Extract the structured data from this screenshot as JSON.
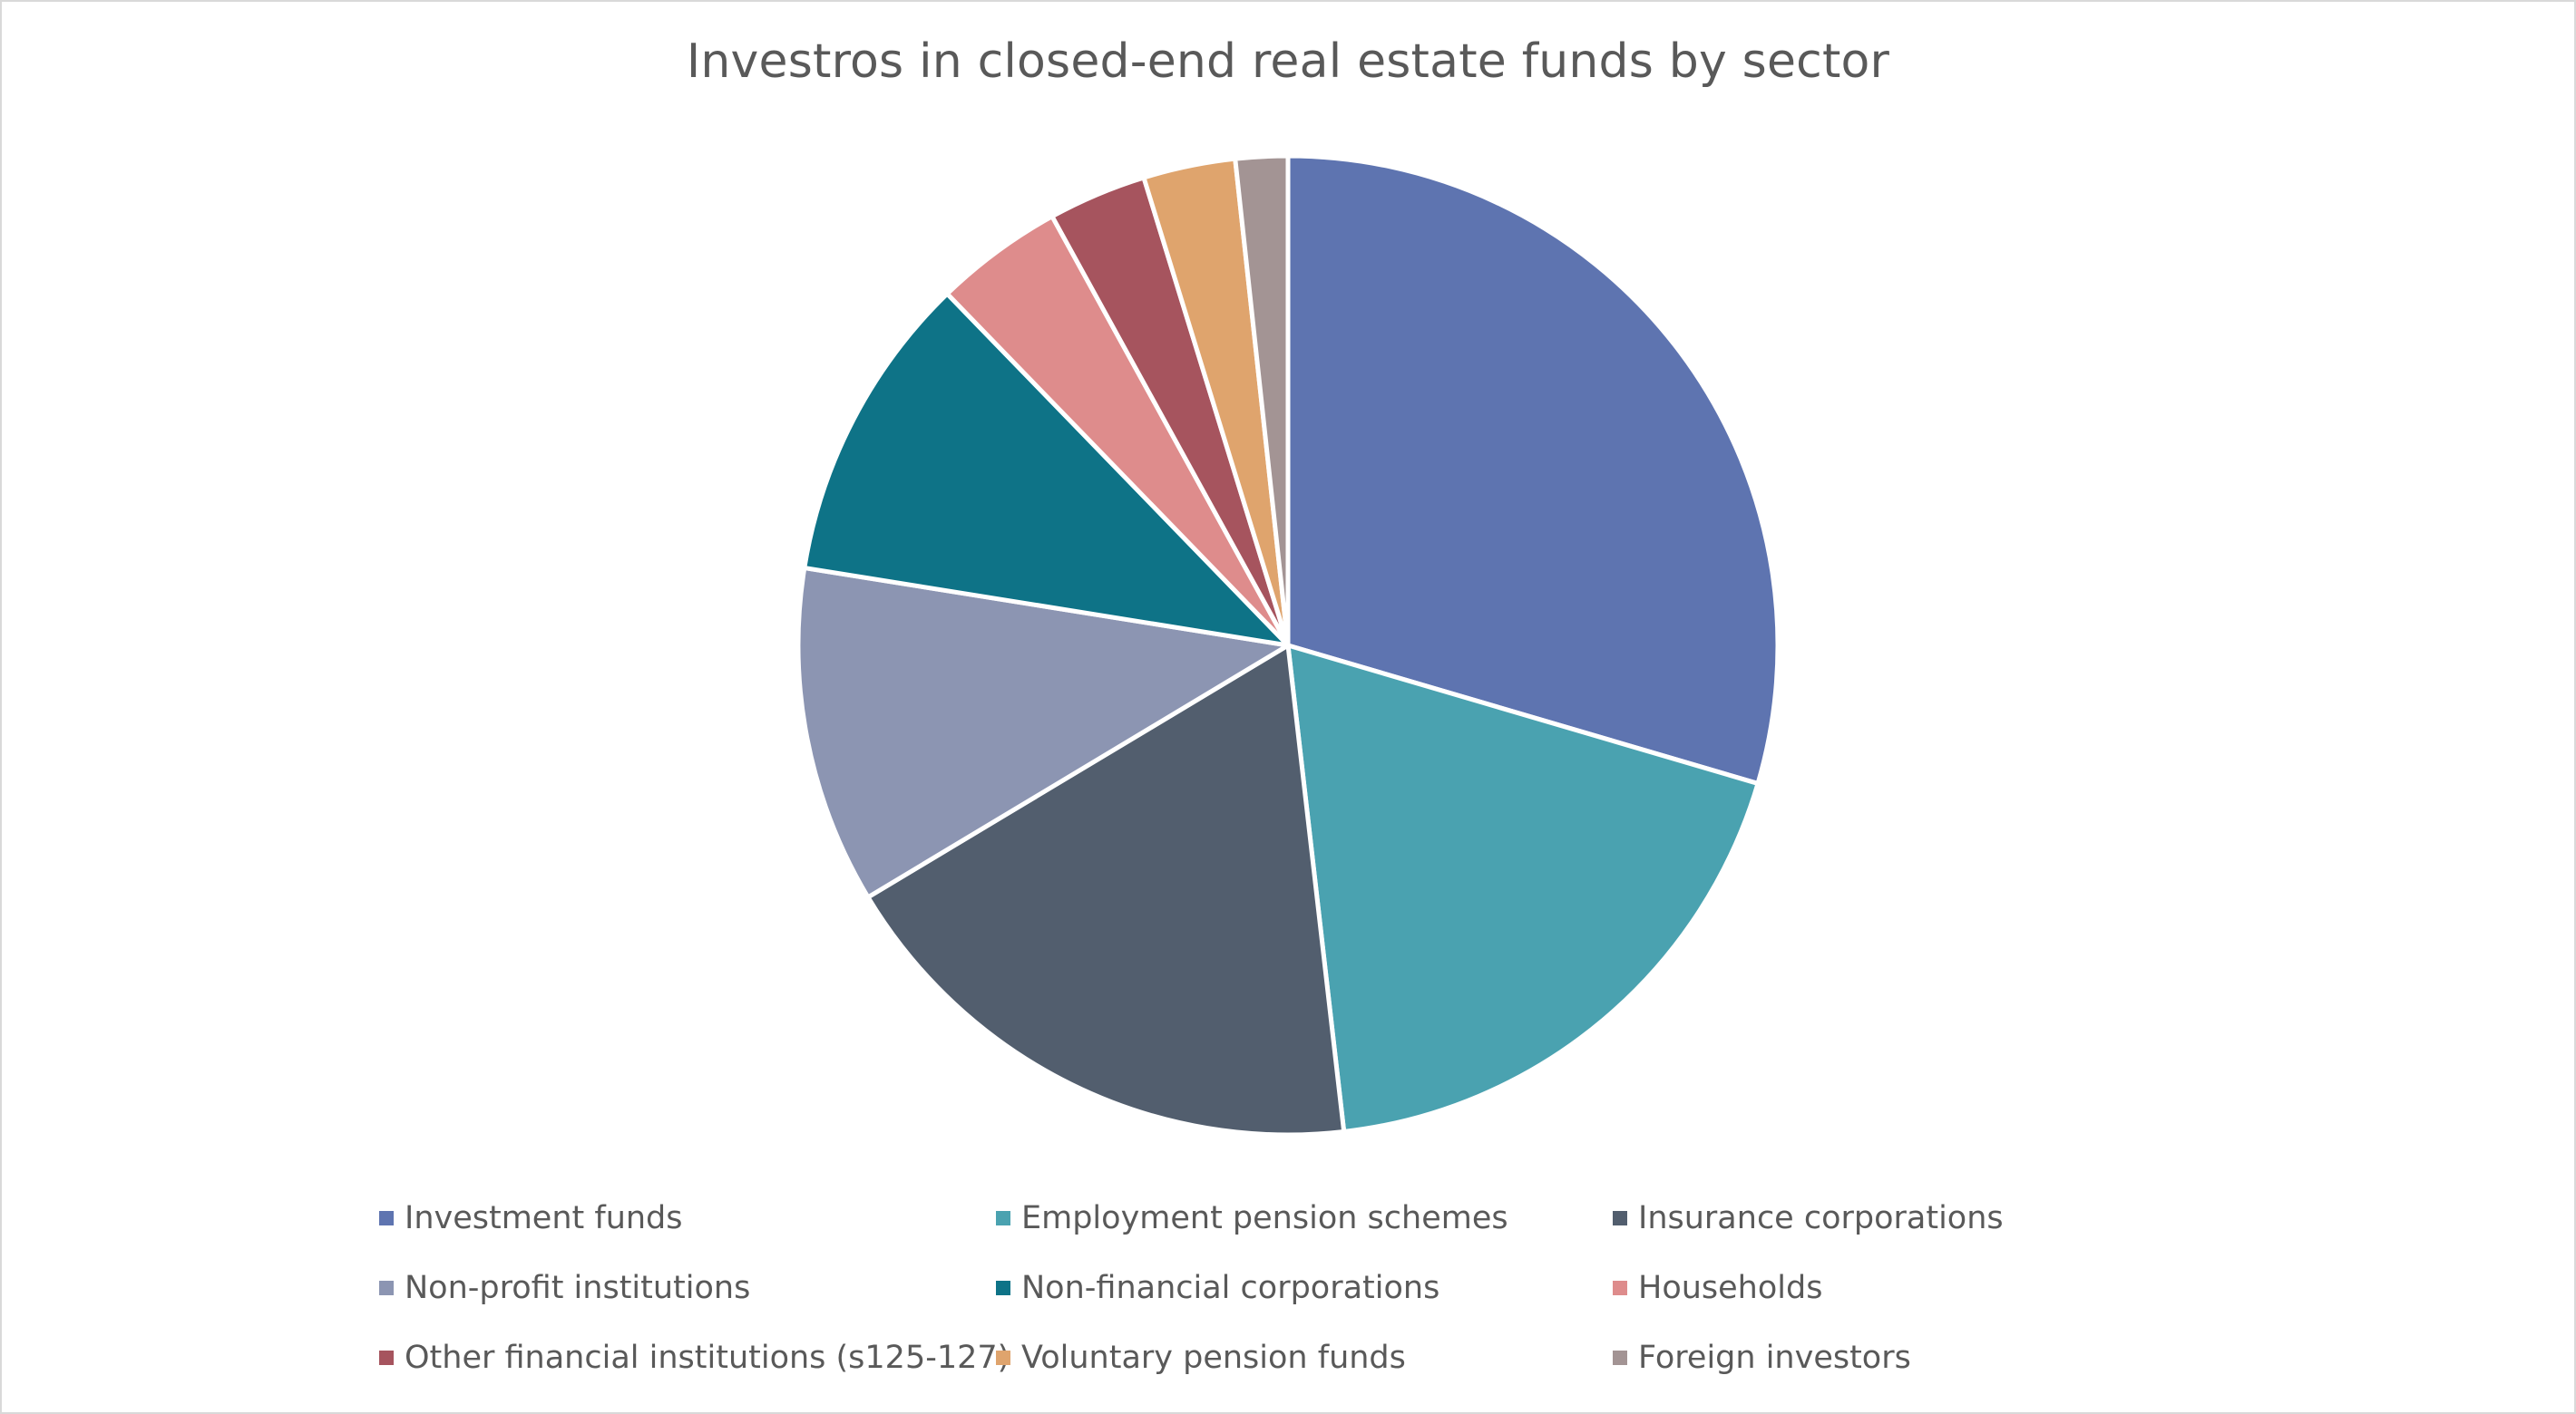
{
  "chart_data": {
    "type": "pie",
    "title": "Investros in closed-end real estate funds by sector",
    "categories": [
      "Investment funds",
      "Employment pension schemes",
      "Insurance corporations",
      "Non-profit institutions",
      "Non-financial corporations",
      "Households",
      "Other financial institutions (s125-127)",
      "Voluntary pension funds",
      "Foreign investors"
    ],
    "values": [
      29.2,
      18.4,
      18.0,
      11.0,
      10.1,
      4.2,
      3.2,
      3.0,
      1.7
    ],
    "colors": [
      "#5E74B0",
      "#4AA2B0",
      "#525E6E",
      "#8C95B2",
      "#0E7387",
      "#DE8C8C",
      "#A6545E",
      "#DFA46D",
      "#A39494"
    ],
    "start_angle": "12 o'clock",
    "direction": "clockwise",
    "legend_position": "bottom"
  }
}
